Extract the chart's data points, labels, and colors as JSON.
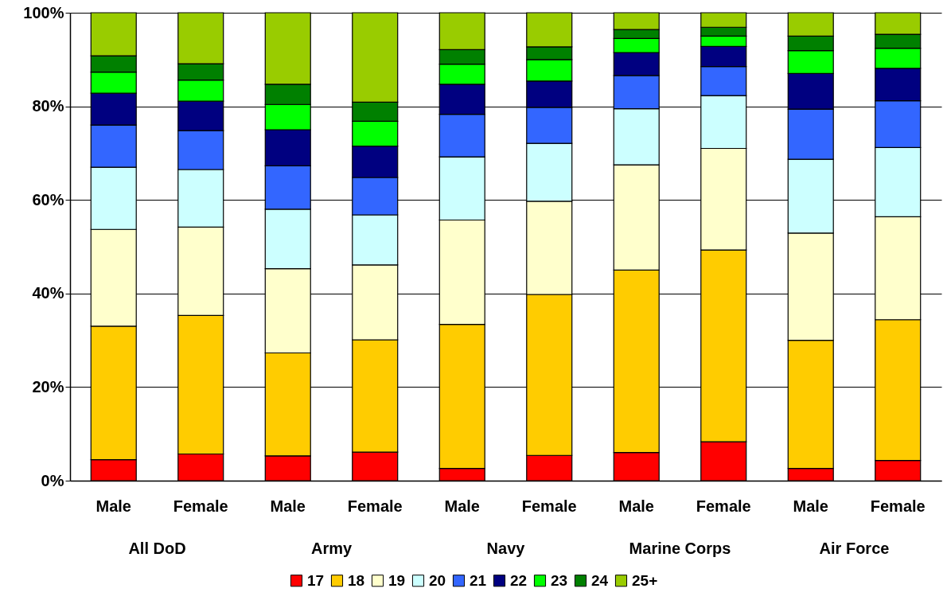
{
  "chart_data": {
    "type": "bar",
    "stacked": true,
    "categories": [
      "Male",
      "Female",
      "Male",
      "Female",
      "Male",
      "Female",
      "Male",
      "Female",
      "Male",
      "Female"
    ],
    "annotations": [
      "All DoD",
      "Army",
      "Navy",
      "Marine Corps",
      "Air Force"
    ],
    "series": [
      {
        "name": "17",
        "color": "#ff0000",
        "values": [
          4.5,
          5.7,
          5.3,
          6.1,
          2.6,
          5.4,
          6,
          8.3,
          2.6,
          4.3
        ]
      },
      {
        "name": "18",
        "color": "#ffcc00",
        "values": [
          28.5,
          29.6,
          22,
          24,
          30.8,
          34.4,
          39,
          41,
          27.4,
          30.1
        ]
      },
      {
        "name": "19",
        "color": "#ffffcc",
        "values": [
          20.7,
          18.9,
          18,
          16,
          22.3,
          19.9,
          22.5,
          21.7,
          22.9,
          22
        ]
      },
      {
        "name": "20",
        "color": "#ccffff",
        "values": [
          13.3,
          12.3,
          12.7,
          10.7,
          13.5,
          12.4,
          12,
          11.3,
          15.8,
          14.8
        ]
      },
      {
        "name": "21",
        "color": "#3366ff",
        "values": [
          9,
          8.3,
          9.3,
          8,
          9.1,
          7.7,
          7.1,
          6.2,
          10.7,
          10
        ]
      },
      {
        "name": "22",
        "color": "#000080",
        "values": [
          6.8,
          6.3,
          7.7,
          6.7,
          6.4,
          5.6,
          4.9,
          4.3,
          7.6,
          6.9
        ]
      },
      {
        "name": "23",
        "color": "#00ff00",
        "values": [
          4.5,
          4.5,
          5.4,
          5.3,
          4.3,
          4.6,
          3,
          2.2,
          4.9,
          4.3
        ]
      },
      {
        "name": "24",
        "color": "#008000",
        "values": [
          3.5,
          3.5,
          4.3,
          4.1,
          3.1,
          2.7,
          1.9,
          1.9,
          3.1,
          3
        ]
      },
      {
        "name": "25+",
        "color": "#99cc00",
        "values": [
          9.2,
          10.9,
          15.3,
          19.1,
          7.9,
          7.3,
          3.6,
          3.1,
          5,
          4.6
        ]
      }
    ],
    "ylim": [
      0,
      100
    ],
    "yticks": [
      {
        "value": 0,
        "label": "0%"
      },
      {
        "value": 20,
        "label": "20%"
      },
      {
        "value": 40,
        "label": "40%"
      },
      {
        "value": 60,
        "label": "60%"
      },
      {
        "value": 80,
        "label": "80%"
      },
      {
        "value": 100,
        "label": "100%"
      }
    ],
    "grid": "y",
    "legend": "bottom"
  }
}
